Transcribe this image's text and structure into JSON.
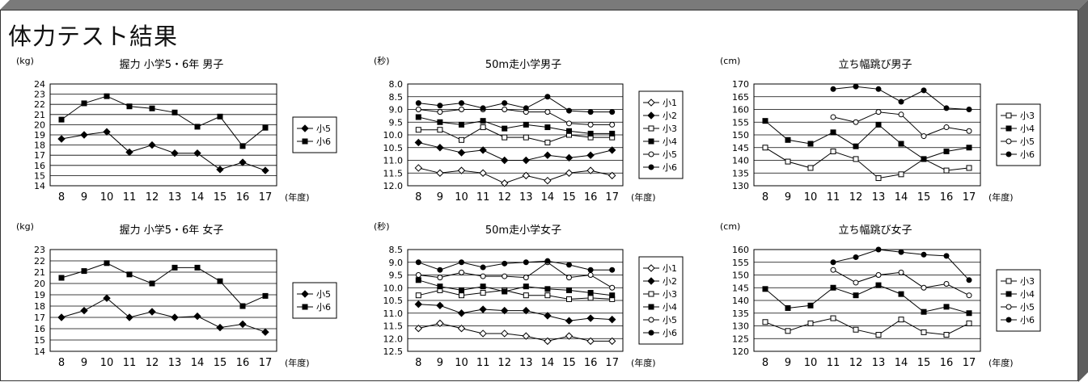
{
  "page": {
    "title": "体力テスト結果"
  },
  "chart_data": [
    {
      "type": "line",
      "title": "握力 小学5・6年 男子",
      "unit": "(kg)",
      "xlabel": "(年度)",
      "x": [
        "8",
        "9",
        "10",
        "11",
        "12",
        "13",
        "14",
        "15",
        "16",
        "17"
      ],
      "yticks": [
        "24",
        "23",
        "22",
        "21",
        "20",
        "19",
        "18",
        "17",
        "16",
        "15",
        "14"
      ],
      "ylim": [
        14,
        24
      ],
      "reverse": false,
      "grid": true,
      "legend": "right",
      "series": [
        {
          "name": "小5",
          "marker": "diamond-filled",
          "values": [
            18.6,
            19.0,
            19.3,
            17.3,
            18.0,
            17.2,
            17.2,
            15.6,
            16.3,
            15.5
          ]
        },
        {
          "name": "小6",
          "marker": "square-filled",
          "values": [
            20.5,
            22.1,
            22.8,
            21.8,
            21.6,
            21.2,
            19.8,
            20.8,
            17.9,
            19.7
          ]
        }
      ]
    },
    {
      "type": "line",
      "title": "50m走小学男子",
      "unit": "(秒)",
      "xlabel": "(年度)",
      "x": [
        "8",
        "9",
        "10",
        "11",
        "12",
        "13",
        "14",
        "15",
        "16",
        "17"
      ],
      "yticks": [
        "8.0",
        "8.5",
        "9.0",
        "9.5",
        "10.0",
        "10.5",
        "11.0",
        "11.5",
        "12.0"
      ],
      "ylim": [
        8.0,
        12.0
      ],
      "reverse": true,
      "grid": true,
      "legend": "right",
      "series": [
        {
          "name": "小1",
          "marker": "diamond-open",
          "values": [
            11.3,
            11.5,
            11.4,
            11.5,
            11.9,
            11.6,
            11.8,
            11.5,
            11.4,
            11.6
          ]
        },
        {
          "name": "小2",
          "marker": "diamond-filled",
          "values": [
            10.3,
            10.5,
            10.7,
            10.6,
            11.0,
            11.0,
            10.8,
            10.9,
            10.8,
            10.6
          ]
        },
        {
          "name": "小3",
          "marker": "square-open",
          "values": [
            9.8,
            9.8,
            10.2,
            9.7,
            10.1,
            10.1,
            10.3,
            10.0,
            10.1,
            10.1
          ]
        },
        {
          "name": "小4",
          "marker": "square-filled",
          "values": [
            9.3,
            9.5,
            9.6,
            9.45,
            9.75,
            9.6,
            9.7,
            9.85,
            9.95,
            9.95
          ]
        },
        {
          "name": "小5",
          "marker": "circle-open",
          "values": [
            9.0,
            9.1,
            9.0,
            9.0,
            9.0,
            9.1,
            9.1,
            9.55,
            9.6,
            9.6
          ]
        },
        {
          "name": "小6",
          "marker": "circle-filled",
          "values": [
            8.75,
            8.85,
            8.75,
            8.95,
            8.75,
            8.95,
            8.5,
            9.05,
            9.1,
            9.1
          ]
        }
      ]
    },
    {
      "type": "line",
      "title": "立ち幅跳び男子",
      "unit": "(cm)",
      "xlabel": "(年度)",
      "x": [
        "8",
        "9",
        "10",
        "11",
        "12",
        "13",
        "14",
        "15",
        "16",
        "17"
      ],
      "yticks": [
        "170",
        "165",
        "160",
        "155",
        "150",
        "145",
        "140",
        "135",
        "130"
      ],
      "ylim": [
        130,
        170
      ],
      "reverse": false,
      "grid": true,
      "legend": "right",
      "series": [
        {
          "name": "小3",
          "marker": "square-open",
          "values": [
            145,
            139.5,
            137,
            143.5,
            140.5,
            133,
            134.5,
            140.5,
            136,
            137
          ]
        },
        {
          "name": "小4",
          "marker": "square-filled",
          "values": [
            155.5,
            148,
            146.5,
            151,
            145.5,
            154,
            146.5,
            140.5,
            143.5,
            145
          ]
        },
        {
          "name": "小5",
          "marker": "circle-open",
          "values": [
            null,
            null,
            null,
            157,
            155,
            159,
            158,
            149.5,
            153,
            151.5
          ]
        },
        {
          "name": "小6",
          "marker": "circle-filled",
          "values": [
            null,
            null,
            null,
            168,
            169,
            168,
            163,
            167.5,
            160.5,
            160
          ]
        }
      ]
    },
    {
      "type": "line",
      "title": "握力 小学5・6年 女子",
      "unit": "(kg)",
      "xlabel": "(年度)",
      "x": [
        "8",
        "9",
        "10",
        "11",
        "12",
        "13",
        "14",
        "15",
        "16",
        "17"
      ],
      "yticks": [
        "23",
        "22",
        "21",
        "20",
        "19",
        "18",
        "17",
        "16",
        "15",
        "14"
      ],
      "ylim": [
        14,
        23
      ],
      "reverse": false,
      "grid": true,
      "legend": "right",
      "series": [
        {
          "name": "小5",
          "marker": "diamond-filled",
          "values": [
            17.0,
            17.6,
            18.7,
            17.0,
            17.5,
            17.0,
            17.1,
            16.1,
            16.4,
            15.7
          ]
        },
        {
          "name": "小6",
          "marker": "square-filled",
          "values": [
            20.5,
            21.1,
            21.8,
            20.8,
            20.0,
            21.4,
            21.4,
            20.2,
            18.0,
            18.9
          ]
        }
      ]
    },
    {
      "type": "line",
      "title": "50m走小学女子",
      "unit": "(秒)",
      "xlabel": "(年度)",
      "x": [
        "8",
        "9",
        "10",
        "11",
        "12",
        "13",
        "14",
        "15",
        "16",
        "17"
      ],
      "yticks": [
        "8.5",
        "9.0",
        "9.5",
        "10.0",
        "10.5",
        "11.0",
        "11.5",
        "12.0",
        "12.5"
      ],
      "ylim": [
        8.5,
        12.5
      ],
      "reverse": true,
      "grid": true,
      "legend": "right",
      "series": [
        {
          "name": "小1",
          "marker": "diamond-open",
          "values": [
            11.6,
            11.4,
            11.6,
            11.8,
            11.8,
            11.9,
            12.1,
            11.9,
            12.1,
            12.1
          ]
        },
        {
          "name": "小2",
          "marker": "diamond-filled",
          "values": [
            10.65,
            10.7,
            11.0,
            10.85,
            10.9,
            10.9,
            11.1,
            11.3,
            11.2,
            11.25
          ]
        },
        {
          "name": "小3",
          "marker": "square-open",
          "values": [
            10.3,
            10.1,
            10.3,
            10.2,
            10.1,
            10.3,
            10.3,
            10.45,
            10.4,
            10.45
          ]
        },
        {
          "name": "小4",
          "marker": "square-filled",
          "values": [
            9.7,
            9.95,
            10.1,
            9.95,
            10.15,
            9.95,
            10.05,
            10.1,
            10.2,
            10.3
          ]
        },
        {
          "name": "小5",
          "marker": "circle-open",
          "values": [
            9.5,
            9.6,
            9.4,
            9.55,
            9.55,
            9.6,
            9.0,
            9.6,
            9.5,
            10.0
          ]
        },
        {
          "name": "小6",
          "marker": "circle-filled",
          "values": [
            9.0,
            9.3,
            9.0,
            9.2,
            9.05,
            9.0,
            8.95,
            9.1,
            9.3,
            9.3
          ]
        }
      ]
    },
    {
      "type": "line",
      "title": "立ち幅跳び女子",
      "unit": "(cm)",
      "xlabel": "(年度)",
      "x": [
        "8",
        "9",
        "10",
        "11",
        "12",
        "13",
        "14",
        "15",
        "16",
        "17"
      ],
      "yticks": [
        "160",
        "155",
        "150",
        "145",
        "140",
        "135",
        "130",
        "125",
        "120"
      ],
      "ylim": [
        120,
        160
      ],
      "reverse": false,
      "grid": true,
      "legend": "right",
      "series": [
        {
          "name": "小3",
          "marker": "square-open",
          "values": [
            131.5,
            128,
            131,
            133,
            128.5,
            126.5,
            132.5,
            127.5,
            126.5,
            131
          ]
        },
        {
          "name": "小4",
          "marker": "square-filled",
          "values": [
            144.5,
            137,
            138,
            145,
            142,
            146,
            142.5,
            135.5,
            137.5,
            135
          ]
        },
        {
          "name": "小5",
          "marker": "circle-open",
          "values": [
            null,
            null,
            null,
            152,
            147,
            150,
            151,
            145,
            146.5,
            142
          ]
        },
        {
          "name": "小6",
          "marker": "circle-filled",
          "values": [
            null,
            null,
            null,
            155,
            157,
            160,
            159,
            158,
            157.5,
            148
          ]
        }
      ]
    }
  ]
}
